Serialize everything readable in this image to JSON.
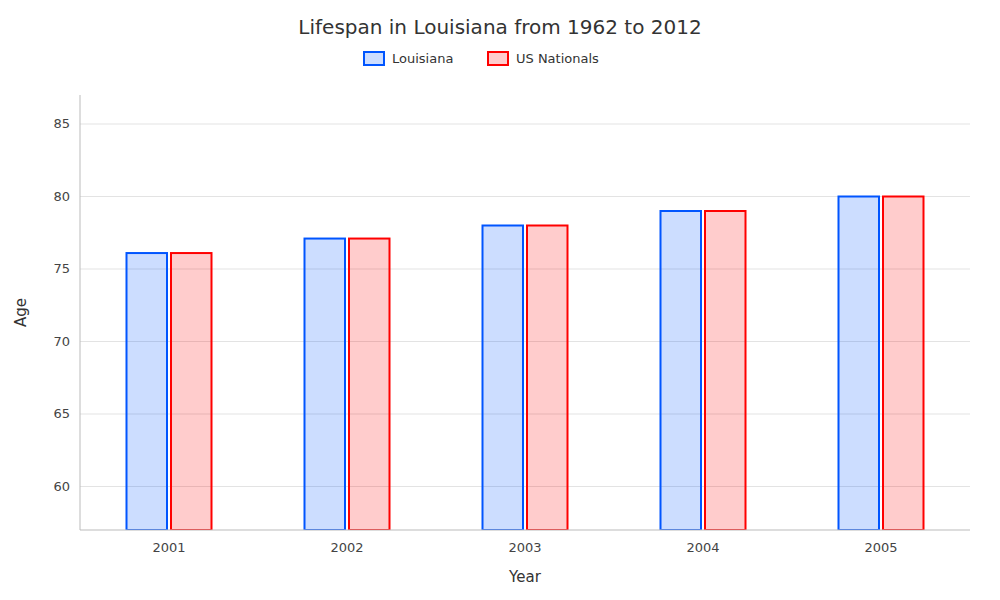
{
  "chart_data": {
    "type": "bar",
    "title": "Lifespan in Louisiana from 1962 to 2012",
    "xlabel": "Year",
    "ylabel": "Age",
    "categories": [
      "2001",
      "2002",
      "2003",
      "2004",
      "2005"
    ],
    "series": [
      {
        "name": "Louisiana",
        "color": "#0055ff",
        "values": [
          76.1,
          77.1,
          78.0,
          79.0,
          80.0
        ]
      },
      {
        "name": "US Nationals",
        "color": "#ff0000",
        "values": [
          76.1,
          77.1,
          78.0,
          79.0,
          80.0
        ]
      }
    ],
    "ylim": [
      57,
      87
    ],
    "yticks": [
      60,
      65,
      70,
      75,
      80,
      85
    ],
    "grid": true,
    "legend": "top"
  }
}
